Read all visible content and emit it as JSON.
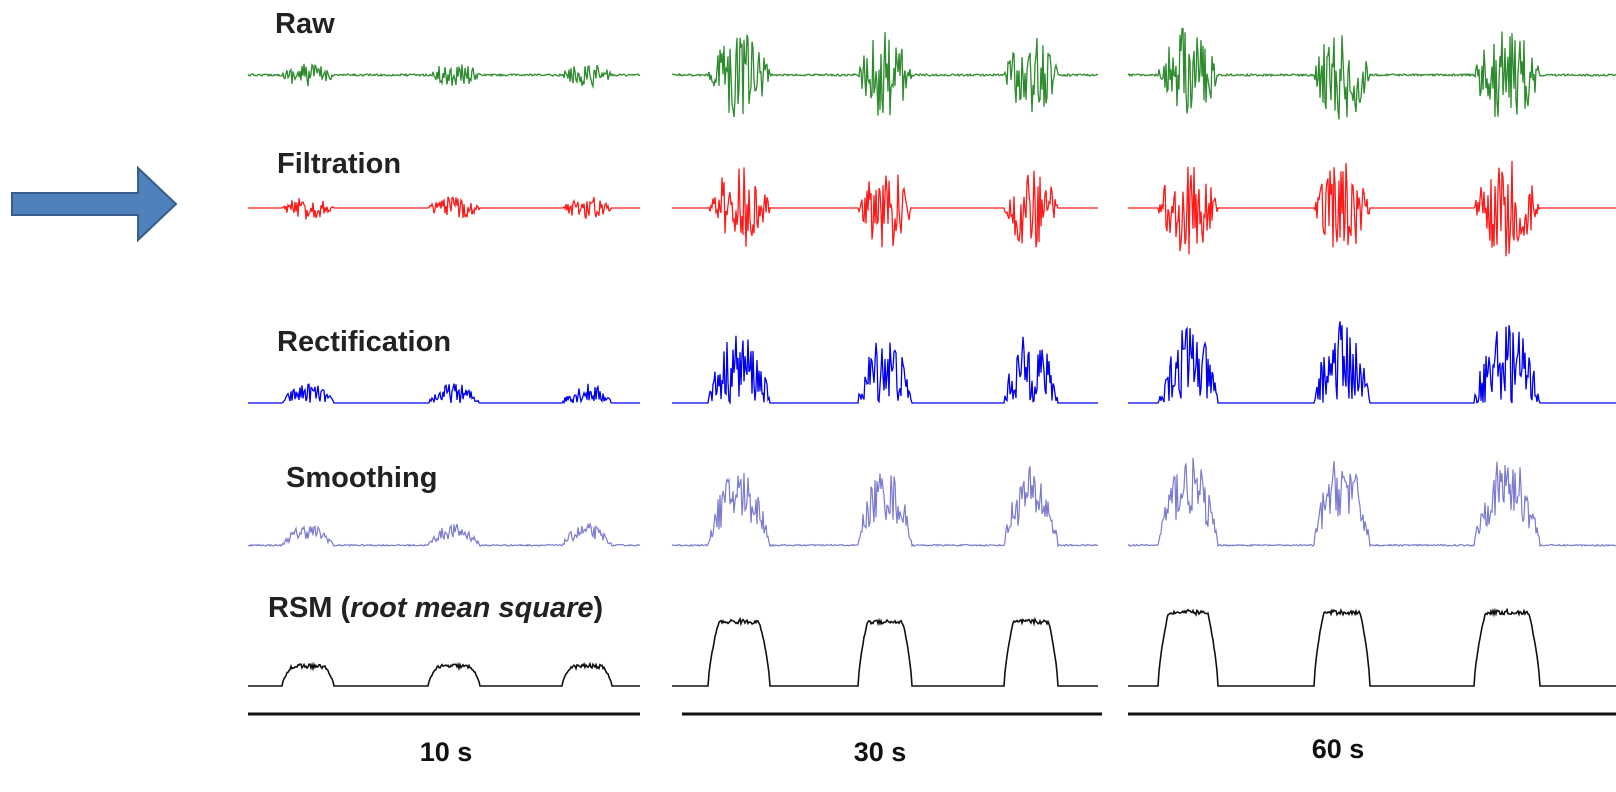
{
  "stages": {
    "raw": "Raw",
    "filtration": "Filtration",
    "rectification": "Rectification",
    "smoothing": "Smoothing",
    "rms_prefix": "RSM (",
    "rms_italic": "root mean square",
    "rms_suffix": ")"
  },
  "durations": [
    "10 s",
    "30 s",
    "60 s"
  ],
  "arrow": {
    "icon": "right-arrow-icon",
    "fill": "#4f81bd",
    "stroke": "#385d8a"
  },
  "colors": {
    "raw": "#2e8b2e",
    "filtration": "#ff1a1a",
    "filtration_baseline": "#f08080",
    "rectification": "#0000ee",
    "rectification_baseline": "#6666ff",
    "smoothing": "#7b7bd0",
    "rms": "#111111"
  }
}
